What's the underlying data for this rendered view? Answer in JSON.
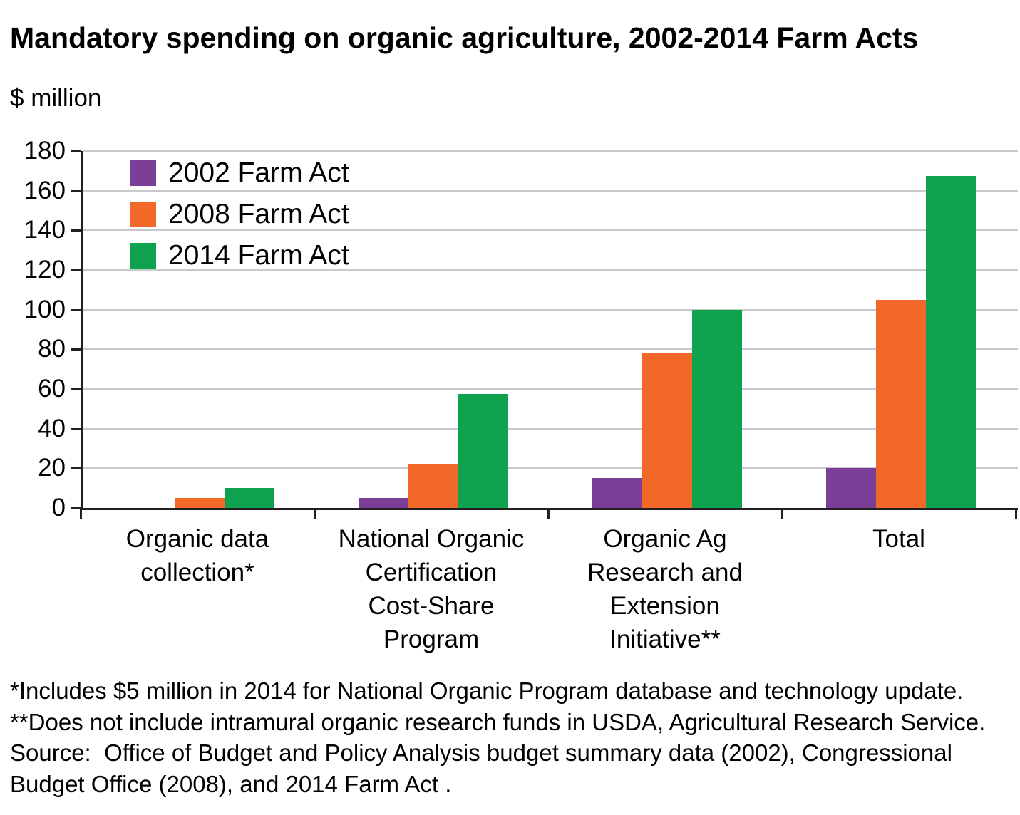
{
  "page": {
    "title": "Mandatory spending on organic agriculture, 2002-2014 Farm Acts",
    "unit_label": "$ million"
  },
  "chart_data": {
    "type": "bar",
    "title": "Mandatory spending on organic agriculture, 2002-2014 Farm Acts",
    "ylabel": "$ million",
    "xlabel": "",
    "ylim": [
      0,
      180
    ],
    "ytick_step": 20,
    "grid": true,
    "legend_position": "upper-left inside plot",
    "categories": [
      "Organic data collection*",
      "National Organic Certification Cost-Share Program",
      "Organic Ag Research and Extension Initiative**",
      "Total"
    ],
    "category_label_lines": [
      [
        "Organic data",
        "collection*"
      ],
      [
        "National Organic",
        "Certification",
        "Cost-Share",
        "Program"
      ],
      [
        "Organic Ag",
        "Research and",
        "Extension",
        "Initiative**"
      ],
      [
        "Total"
      ]
    ],
    "series": [
      {
        "name": "2002 Farm Act",
        "color": "#7b3f98",
        "values": [
          0,
          5,
          15,
          20
        ]
      },
      {
        "name": "2008 Farm Act",
        "color": "#f26829",
        "values": [
          5,
          22,
          78,
          105
        ]
      },
      {
        "name": "2014 Farm Act",
        "color": "#0fa24e",
        "values": [
          10,
          57.5,
          100,
          167.5
        ]
      }
    ]
  },
  "footnotes": [
    "*Includes $5 million in 2014 for National Organic Program database and technology update.",
    "**Does not include intramural organic research funds in USDA, Agricultural Research Service.",
    "Source:  Office of Budget and Policy Analysis budget summary data (2002), Congressional Budget Office (2008), and 2014 Farm Act ."
  ],
  "style_colors": {
    "grid": "#c8c9ca",
    "axis": "#231f20",
    "text": "#000000"
  }
}
